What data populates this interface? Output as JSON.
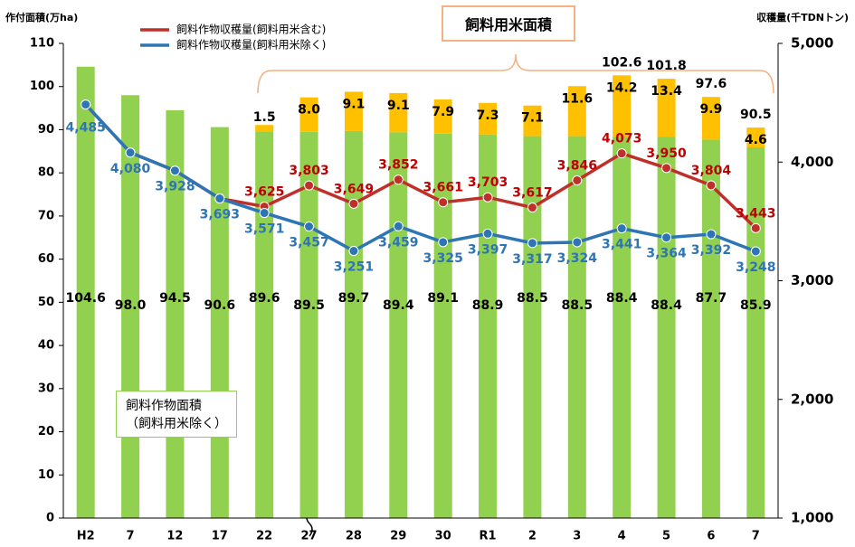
{
  "chart_data": {
    "type": "bar",
    "y_label": "作付面積(万ha)",
    "y2_label": "収穫量(千TDNトン)",
    "categories": [
      "H2",
      "7",
      "12",
      "17",
      "22",
      "27",
      "28",
      "29",
      "30",
      "R1",
      "2",
      "3",
      "4",
      "5",
      "6",
      "7"
    ],
    "ylim": [
      0,
      110
    ],
    "yticks": [
      0,
      10,
      20,
      30,
      40,
      50,
      60,
      70,
      80,
      90,
      100,
      110
    ],
    "y2lim": [
      1000,
      5000
    ],
    "y2ticks": [
      {
        "value": 1000,
        "label": "1,000"
      },
      {
        "value": 2000,
        "label": "2,000"
      },
      {
        "value": 3000,
        "label": "3,000"
      },
      {
        "value": 4000,
        "label": "4,000"
      },
      {
        "value": 5000,
        "label": "5,000"
      }
    ],
    "series": [
      {
        "name": "飼料作物面積\n（飼料用米除く）",
        "type": "bar",
        "color": "#92d050",
        "values": [
          104.6,
          98.0,
          94.5,
          90.6,
          89.6,
          89.5,
          89.7,
          89.4,
          89.1,
          88.9,
          88.5,
          88.5,
          88.4,
          88.4,
          87.7,
          85.9
        ],
        "value_labels": [
          "104.6",
          "98.0",
          "94.5",
          "90.6",
          "89.6",
          "89.5",
          "89.7",
          "89.4",
          "89.1",
          "88.9",
          "88.5",
          "88.5",
          "88.4",
          "88.4",
          "87.7",
          "85.9"
        ]
      },
      {
        "name": "飼料用米面積",
        "type": "bar",
        "color": "#ffc000",
        "values": [
          null,
          null,
          null,
          null,
          1.5,
          8.0,
          9.1,
          9.1,
          7.9,
          7.3,
          7.1,
          11.6,
          14.2,
          13.4,
          9.9,
          4.6
        ],
        "value_labels": [
          null,
          null,
          null,
          null,
          "1.5",
          "8.0",
          "9.1",
          "9.1",
          "7.9",
          "7.3",
          "7.1",
          "11.6",
          "14.2",
          "13.4",
          "9.9",
          "4.6"
        ]
      },
      {
        "name": "飼料作物収穫量(飼料用米含む)",
        "type": "line",
        "axis": "y2",
        "color": "#c0302a",
        "values": [
          4485,
          4080,
          3928,
          3693,
          3625,
          3803,
          3649,
          3852,
          3661,
          3703,
          3617,
          3846,
          4073,
          3950,
          3804,
          3443
        ],
        "value_labels": [
          null,
          null,
          null,
          null,
          "3,625",
          "3,803",
          "3,649",
          "3,852",
          "3,661",
          "3,703",
          "3,617",
          "3,846",
          "4,073",
          "3,950",
          "3,804",
          "3,443"
        ]
      },
      {
        "name": "飼料作物収穫量(飼料用米除く)",
        "type": "line",
        "axis": "y2",
        "color": "#2e75b6",
        "values": [
          4485,
          4080,
          3928,
          3693,
          3571,
          3457,
          3251,
          3459,
          3325,
          3397,
          3317,
          3324,
          3441,
          3364,
          3392,
          3248
        ],
        "value_labels": [
          "4,485",
          "4,080",
          "3,928",
          "3,693",
          "3,571",
          "3,457",
          "3,251",
          "3,459",
          "3,325",
          "3,397",
          "3,317",
          "3,324",
          "3,441",
          "3,364",
          "3,392",
          "3,248"
        ]
      }
    ],
    "totals": [
      null,
      null,
      null,
      null,
      null,
      null,
      null,
      null,
      null,
      null,
      null,
      null,
      102.6,
      101.8,
      97.6,
      90.5
    ]
  }
}
